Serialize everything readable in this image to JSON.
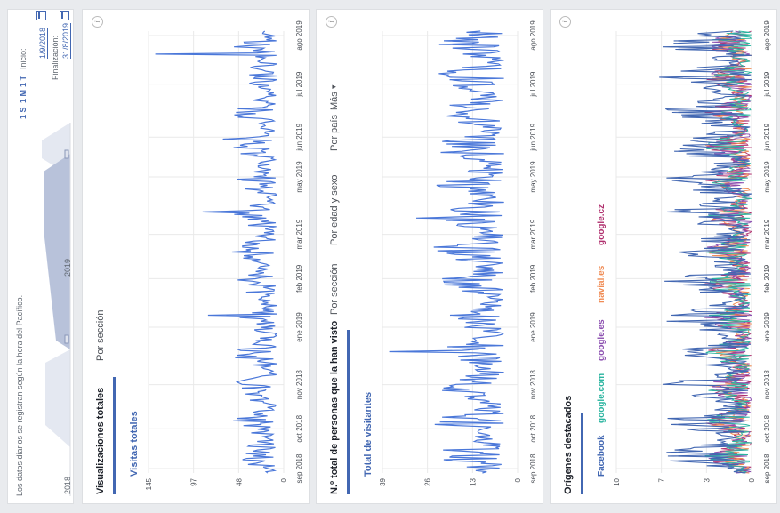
{
  "header": {
    "note": "Los datos diarios se registran según la hora del Pacífico.",
    "range_buttons": [
      "1 S",
      "1 M",
      "1 T"
    ],
    "start_label": "Inicio:",
    "start_date": "1/9/2018",
    "end_label": "Finalización:",
    "end_date": "31/8/2019",
    "year_labels": [
      "2018",
      "2019"
    ]
  },
  "x_ticks": [
    "sep 2018",
    "oct 2018",
    "nov 2018",
    "ene 2019",
    "feb 2019",
    "mar 2019",
    "may 2019",
    "jun 2019",
    "jul 2019",
    "ago 2019"
  ],
  "card1": {
    "title": "Visualizaciones totales",
    "tabs": [
      "Por sección"
    ],
    "series_label": "Visitas totales",
    "y_ticks": [
      "145",
      "97",
      "48",
      "0"
    ]
  },
  "card2": {
    "title": "N.º total de personas que la han visto",
    "tabs": [
      "Por sección",
      "Por edad y sexo",
      "Por país",
      "Más"
    ],
    "more_arrow": "▾",
    "series_label": "Total de visitantes",
    "y_ticks": [
      "39",
      "26",
      "13",
      "0"
    ]
  },
  "card3": {
    "title": "Orígenes destacados",
    "y_ticks": [
      "10",
      "7",
      "3",
      "0"
    ],
    "legend": [
      {
        "label": "Facebook",
        "color": "#4267b2"
      },
      {
        "label": "google.com",
        "color": "#2bb5a0"
      },
      {
        "label": "google.es",
        "color": "#8c50b0"
      },
      {
        "label": "navial.es",
        "color": "#f08c55"
      },
      {
        "label": "google.cz",
        "color": "#b0306e"
      }
    ]
  },
  "colors": {
    "accent": "#4267b2",
    "line": "#4a77d9"
  }
}
